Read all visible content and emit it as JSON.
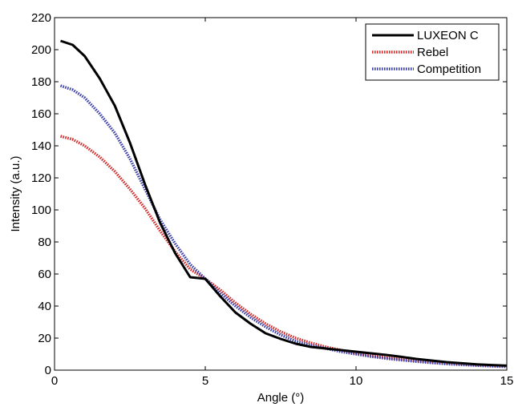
{
  "chart_data": {
    "type": "line",
    "title": "",
    "xlabel": "Angle (°)",
    "ylabel": "Intensity (a.u.)",
    "xlim": [
      0,
      15
    ],
    "ylim": [
      0,
      220
    ],
    "xticks": [
      0,
      5,
      10,
      15
    ],
    "yticks": [
      0,
      20,
      40,
      60,
      80,
      100,
      120,
      140,
      160,
      180,
      200,
      220
    ],
    "grid": false,
    "legend_position": "top-right",
    "series": [
      {
        "name": "LUXEON C",
        "color": "#000000",
        "style": "solid",
        "x": [
          0.2,
          0.6,
          1.0,
          1.5,
          2.0,
          2.5,
          3.0,
          3.5,
          4.0,
          4.5,
          5.0,
          5.5,
          6.0,
          6.5,
          7.0,
          7.5,
          8.0,
          8.5,
          9.0,
          9.5,
          10.0,
          10.5,
          11.0,
          11.5,
          12.0,
          12.5,
          13.0,
          13.5,
          14.0,
          14.5,
          15.0
        ],
        "y": [
          205.5,
          203,
          196,
          182,
          165,
          142,
          116,
          92,
          73,
          58,
          57,
          46,
          36,
          29,
          23,
          19.5,
          16.5,
          14.5,
          13.5,
          12.5,
          11.5,
          10.5,
          9.5,
          8.3,
          7.0,
          6.0,
          5.0,
          4.3,
          3.6,
          3.2,
          2.8
        ]
      },
      {
        "name": "Rebel",
        "color": "#d42a2a",
        "style": "dotted",
        "x": [
          0.2,
          0.6,
          1.0,
          1.5,
          2.0,
          2.5,
          3.0,
          3.5,
          4.0,
          4.5,
          5.0,
          5.5,
          6.0,
          6.5,
          7.0,
          7.5,
          8.0,
          8.5,
          9.0,
          9.5,
          10.0,
          10.5,
          11.0,
          11.5,
          12.0,
          12.5,
          13.0,
          13.5,
          14.0,
          14.5,
          15.0
        ],
        "y": [
          146,
          144,
          140,
          133,
          124,
          113,
          101,
          87,
          74,
          63,
          57,
          50,
          42,
          35,
          29,
          24,
          20,
          17,
          14.5,
          12.5,
          10.5,
          9.0,
          7.8,
          6.8,
          5.8,
          5.0,
          4.3,
          3.7,
          3.2,
          2.7,
          2.3
        ]
      },
      {
        "name": "Competition",
        "color": "#3a3fa8",
        "style": "dotted",
        "x": [
          0.2,
          0.6,
          1.0,
          1.5,
          2.0,
          2.5,
          3.0,
          3.5,
          4.0,
          4.5,
          5.0,
          5.5,
          6.0,
          6.5,
          7.0,
          7.5,
          8.0,
          8.5,
          9.0,
          9.5,
          10.0,
          10.5,
          11.0,
          11.5,
          12.0,
          12.5,
          13.0,
          13.5,
          14.0,
          14.5,
          15.0
        ],
        "y": [
          177.5,
          175,
          170,
          160,
          148,
          132,
          113,
          94,
          79,
          66,
          57,
          48,
          40,
          33,
          27,
          22,
          18,
          15.5,
          13.5,
          11.5,
          10.0,
          8.5,
          7.3,
          6.3,
          5.4,
          4.6,
          3.9,
          3.4,
          2.9,
          2.5,
          2.1
        ]
      }
    ]
  }
}
